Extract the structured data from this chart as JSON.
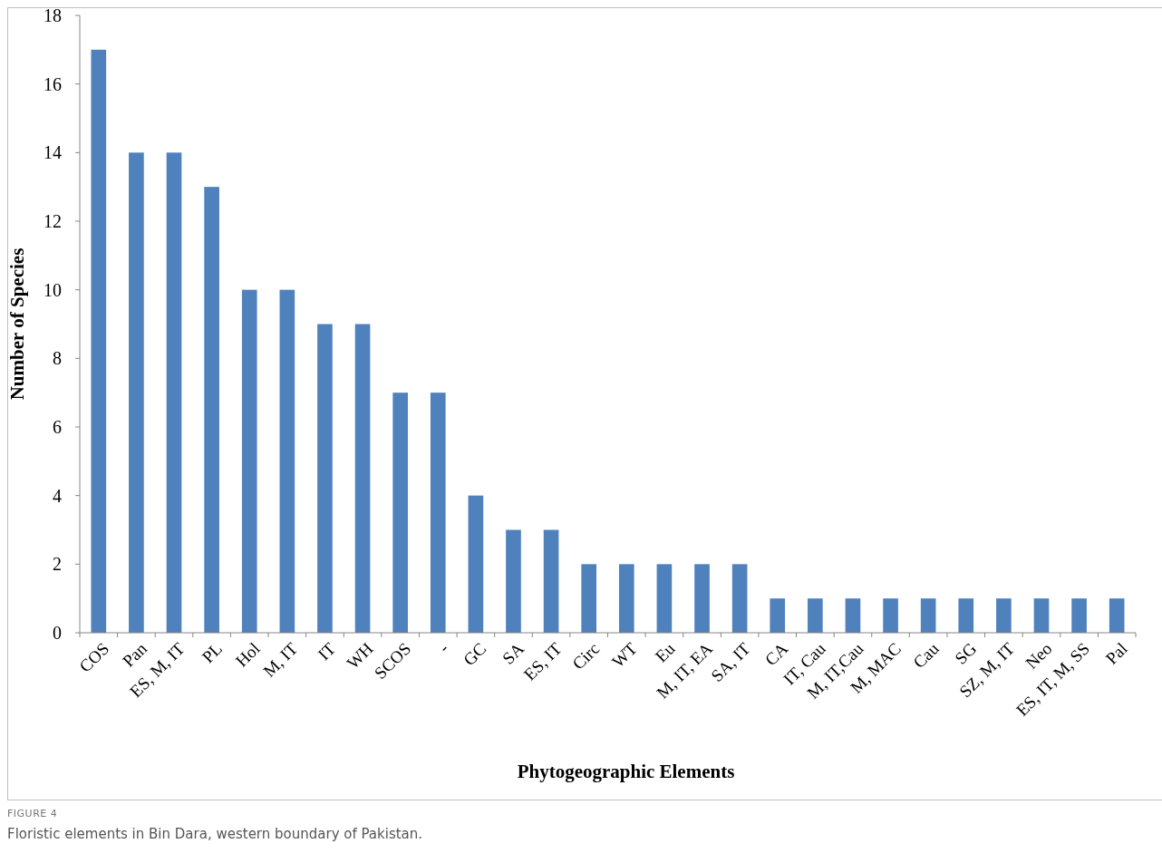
{
  "chart_data": {
    "type": "bar",
    "xlabel": "Phytogeographic Elements",
    "ylabel": "Number of Species",
    "categories": [
      "COS",
      "Pan",
      "ES, M, IT",
      "PL",
      "Hol",
      "M, IT",
      "IT",
      "WH",
      "SCOS",
      "-",
      "GC",
      "SA",
      "ES, IT",
      "Circ",
      "WT",
      "Eu",
      "M, IT, EA",
      "SA, IT",
      "CA",
      "IT, Cau",
      "M, IT,Cau",
      "M, MAC",
      "Cau",
      "SG",
      "SZ, M, IT",
      "Neo",
      "ES, IT, M, SS",
      "Pal"
    ],
    "values": [
      17,
      14,
      14,
      13,
      10,
      10,
      9,
      9,
      7,
      7,
      4,
      3,
      3,
      2,
      2,
      2,
      2,
      2,
      1,
      1,
      1,
      1,
      1,
      1,
      1,
      1,
      1,
      1
    ],
    "color": "#4f81bd",
    "ylim": [
      0,
      18
    ],
    "yticks": [
      0,
      2,
      4,
      6,
      8,
      10,
      12,
      14,
      16,
      18
    ],
    "annotations": [
      "FIGURE 4",
      "Floristic elements in Bin Dara, western boundary of Pakistan."
    ]
  }
}
